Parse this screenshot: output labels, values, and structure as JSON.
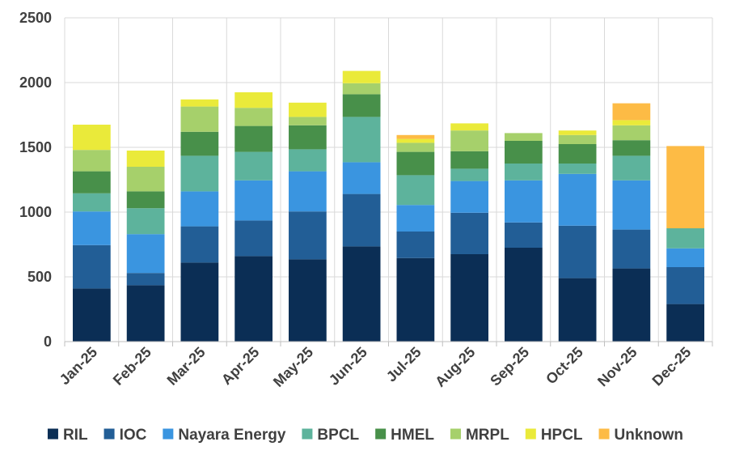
{
  "chart_data": {
    "type": "bar",
    "stacked": true,
    "title": "",
    "xlabel": "",
    "ylabel": "",
    "ylim": [
      0,
      2500
    ],
    "yticks": [
      0,
      500,
      1000,
      1500,
      2000,
      2500
    ],
    "ytick_labels": [
      "0",
      "500",
      "1000",
      "1500",
      "2000",
      "2500"
    ],
    "grid": true,
    "legend_position": "bottom",
    "categories": [
      "Jan-25",
      "Feb-25",
      "Mar-25",
      "Apr-25",
      "May-25",
      "Jun-25",
      "Jul-25",
      "Aug-25",
      "Sep-25",
      "Oct-25",
      "Nov-25",
      "Dec-25"
    ],
    "series": [
      {
        "name": "RIL",
        "color": "#0b2e55",
        "values": [
          410,
          435,
          610,
          660,
          635,
          735,
          645,
          675,
          725,
          490,
          565,
          290
        ]
      },
      {
        "name": "IOC",
        "color": "#225e96",
        "values": [
          335,
          95,
          280,
          275,
          370,
          405,
          205,
          320,
          195,
          405,
          300,
          285
        ]
      },
      {
        "name": "Nayara Energy",
        "color": "#3a95e0",
        "values": [
          260,
          300,
          270,
          310,
          310,
          245,
          205,
          245,
          325,
          400,
          380,
          145
        ]
      },
      {
        "name": "BPCL",
        "color": "#5db39c",
        "values": [
          140,
          200,
          275,
          220,
          170,
          350,
          230,
          95,
          130,
          80,
          190,
          155
        ]
      },
      {
        "name": "HMEL",
        "color": "#48904a",
        "values": [
          170,
          130,
          185,
          200,
          185,
          175,
          180,
          135,
          175,
          150,
          120,
          0
        ]
      },
      {
        "name": "MRPL",
        "color": "#a6d06b",
        "values": [
          165,
          190,
          195,
          140,
          65,
          85,
          70,
          160,
          60,
          70,
          115,
          0
        ]
      },
      {
        "name": "HPCL",
        "color": "#eaea3a",
        "values": [
          195,
          125,
          55,
          120,
          110,
          95,
          30,
          55,
          0,
          35,
          40,
          0
        ]
      },
      {
        "name": "Unknown",
        "color": "#fdbb45",
        "values": [
          0,
          0,
          0,
          0,
          0,
          0,
          30,
          0,
          0,
          0,
          130,
          635
        ]
      }
    ]
  }
}
